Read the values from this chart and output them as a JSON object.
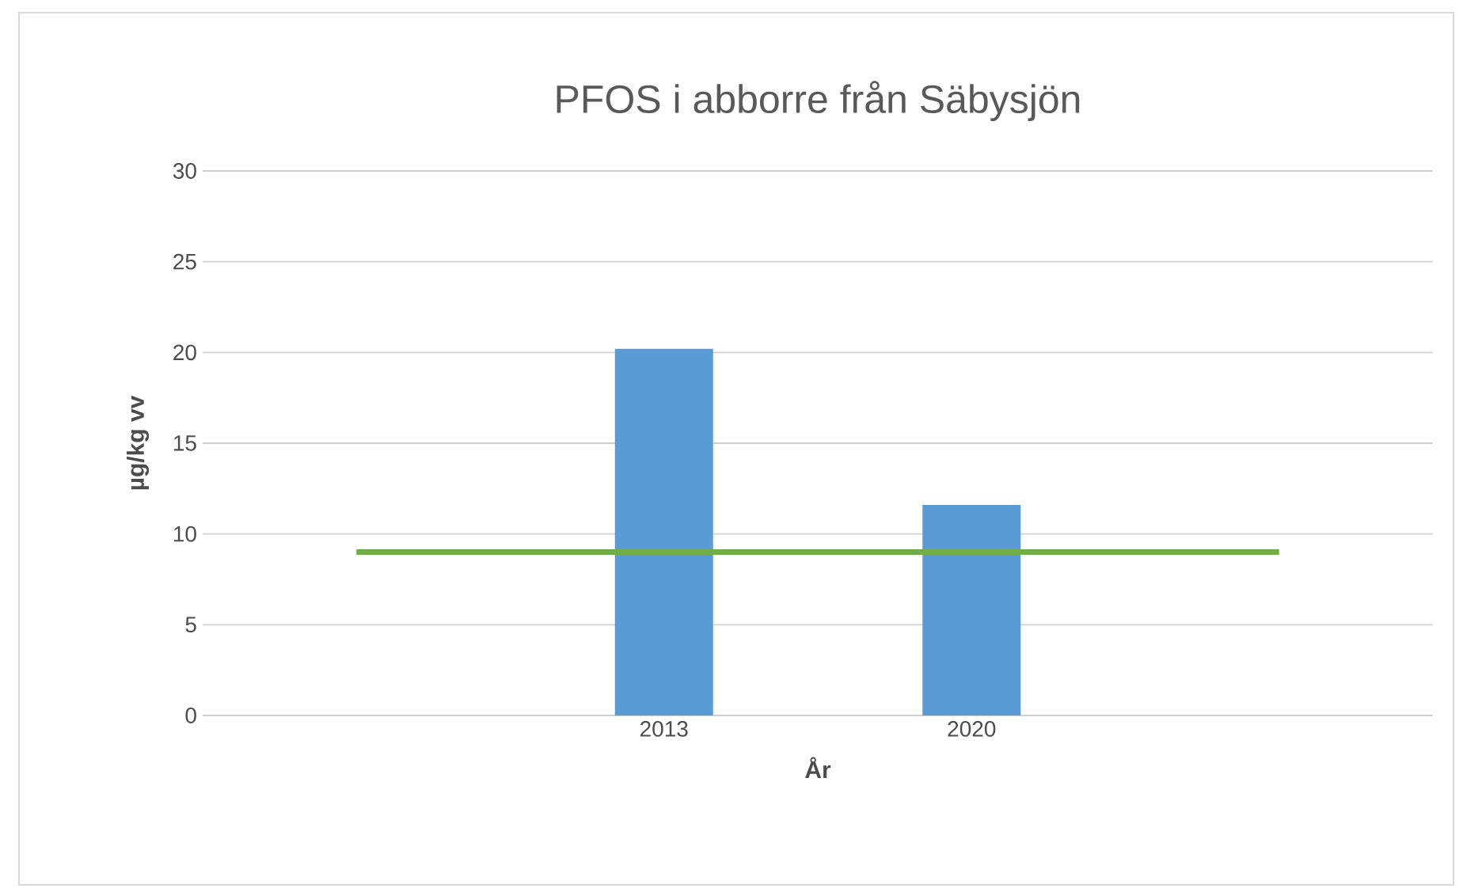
{
  "chart_data": {
    "type": "bar",
    "title": "PFOS i abborre från Säbysjön",
    "xlabel": "År",
    "ylabel": "µg/kg vv",
    "categories": [
      null,
      "2013",
      "2020",
      null
    ],
    "series": [
      {
        "color": "#5b9bd5",
        "values": [
          null,
          20.2,
          11.6,
          null
        ]
      },
      {
        "type": "line",
        "color": "#70ad47",
        "values": [
          9.0,
          9.0,
          9.0,
          9.0
        ]
      }
    ],
    "ylim": [
      0,
      30
    ],
    "yticks": [
      0,
      5,
      10,
      15,
      20,
      25,
      30
    ],
    "grid": "y"
  }
}
